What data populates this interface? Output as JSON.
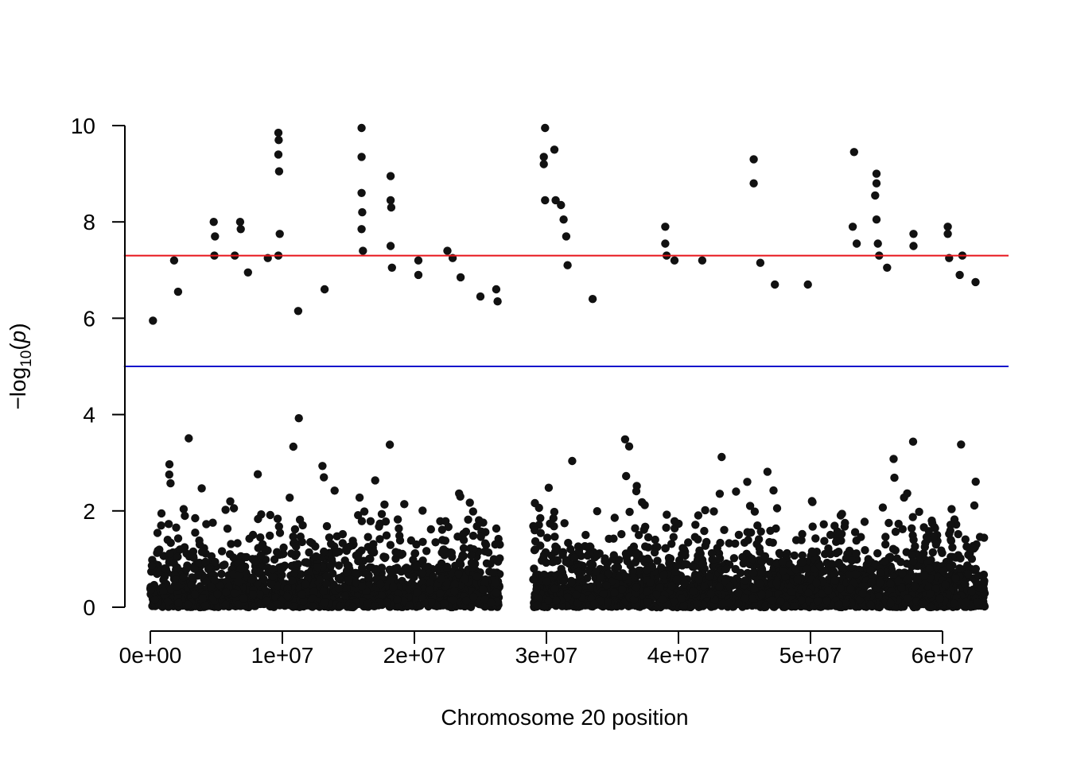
{
  "chart_data": {
    "type": "scatter",
    "title": "",
    "xlabel": "Chromosome 20 position",
    "ylabel": "-log10(p)",
    "xlim": [
      -2000000,
      65000000
    ],
    "ylim": [
      0,
      10
    ],
    "x_ticks": [
      0,
      10000000,
      20000000,
      30000000,
      40000000,
      50000000,
      60000000
    ],
    "x_tick_labels": [
      "0e+00",
      "1e+07",
      "2e+07",
      "3e+07",
      "4e+07",
      "5e+07",
      "6e+07"
    ],
    "y_ticks": [
      0,
      2,
      4,
      6,
      8,
      10
    ],
    "y_tick_labels": [
      "0",
      "2",
      "4",
      "6",
      "8",
      "10"
    ],
    "point_color": "#111111",
    "grid": false,
    "thresholds": [
      {
        "value": 7.3,
        "color": "#e8151b"
      },
      {
        "value": 5.0,
        "color": "#1414cc"
      }
    ],
    "data_gap": [
      26500000,
      29000000
    ],
    "peaks": [
      {
        "x": 200000,
        "y": 5.95
      },
      {
        "x": 1800000,
        "y": 7.2
      },
      {
        "x": 2100000,
        "y": 6.55
      },
      {
        "x": 4800000,
        "y": 8.0
      },
      {
        "x": 4900000,
        "y": 7.7
      },
      {
        "x": 4850000,
        "y": 7.3
      },
      {
        "x": 6400000,
        "y": 7.3
      },
      {
        "x": 6800000,
        "y": 8.0
      },
      {
        "x": 6850000,
        "y": 7.85
      },
      {
        "x": 7400000,
        "y": 6.95
      },
      {
        "x": 8900000,
        "y": 7.25
      },
      {
        "x": 9700000,
        "y": 9.85
      },
      {
        "x": 9720000,
        "y": 9.7
      },
      {
        "x": 9700000,
        "y": 9.4
      },
      {
        "x": 9750000,
        "y": 9.05
      },
      {
        "x": 9800000,
        "y": 7.75
      },
      {
        "x": 9700000,
        "y": 7.3
      },
      {
        "x": 11200000,
        "y": 6.15
      },
      {
        "x": 13200000,
        "y": 6.6
      },
      {
        "x": 16000000,
        "y": 9.95
      },
      {
        "x": 16000000,
        "y": 9.35
      },
      {
        "x": 16000000,
        "y": 8.6
      },
      {
        "x": 16050000,
        "y": 8.2
      },
      {
        "x": 16000000,
        "y": 7.85
      },
      {
        "x": 16100000,
        "y": 7.4
      },
      {
        "x": 18200000,
        "y": 8.95
      },
      {
        "x": 18200000,
        "y": 8.45
      },
      {
        "x": 18250000,
        "y": 8.3
      },
      {
        "x": 18200000,
        "y": 7.5
      },
      {
        "x": 18300000,
        "y": 7.05
      },
      {
        "x": 20300000,
        "y": 7.2
      },
      {
        "x": 20300000,
        "y": 6.9
      },
      {
        "x": 22500000,
        "y": 7.4
      },
      {
        "x": 22900000,
        "y": 7.25
      },
      {
        "x": 23500000,
        "y": 6.85
      },
      {
        "x": 25000000,
        "y": 6.45
      },
      {
        "x": 26200000,
        "y": 6.6
      },
      {
        "x": 26300000,
        "y": 6.35
      },
      {
        "x": 29900000,
        "y": 9.95
      },
      {
        "x": 29800000,
        "y": 9.35
      },
      {
        "x": 29800000,
        "y": 9.2
      },
      {
        "x": 30600000,
        "y": 9.5
      },
      {
        "x": 29900000,
        "y": 8.45
      },
      {
        "x": 30700000,
        "y": 8.45
      },
      {
        "x": 31100000,
        "y": 8.35
      },
      {
        "x": 31300000,
        "y": 8.05
      },
      {
        "x": 31500000,
        "y": 7.7
      },
      {
        "x": 31600000,
        "y": 7.1
      },
      {
        "x": 33500000,
        "y": 6.4
      },
      {
        "x": 39000000,
        "y": 7.9
      },
      {
        "x": 39000000,
        "y": 7.55
      },
      {
        "x": 39100000,
        "y": 7.3
      },
      {
        "x": 39700000,
        "y": 7.2
      },
      {
        "x": 41800000,
        "y": 7.2
      },
      {
        "x": 45700000,
        "y": 9.3
      },
      {
        "x": 45700000,
        "y": 8.8
      },
      {
        "x": 46200000,
        "y": 7.15
      },
      {
        "x": 47300000,
        "y": 6.7
      },
      {
        "x": 49800000,
        "y": 6.7
      },
      {
        "x": 53300000,
        "y": 9.45
      },
      {
        "x": 53200000,
        "y": 7.9
      },
      {
        "x": 53500000,
        "y": 7.55
      },
      {
        "x": 55000000,
        "y": 9.0
      },
      {
        "x": 55000000,
        "y": 8.8
      },
      {
        "x": 54900000,
        "y": 8.55
      },
      {
        "x": 55000000,
        "y": 8.05
      },
      {
        "x": 55100000,
        "y": 7.55
      },
      {
        "x": 55200000,
        "y": 7.3
      },
      {
        "x": 55800000,
        "y": 7.05
      },
      {
        "x": 57800000,
        "y": 7.75
      },
      {
        "x": 57800000,
        "y": 7.5
      },
      {
        "x": 60400000,
        "y": 7.9
      },
      {
        "x": 60400000,
        "y": 7.75
      },
      {
        "x": 60500000,
        "y": 7.25
      },
      {
        "x": 61500000,
        "y": 7.3
      },
      {
        "x": 61300000,
        "y": 6.9
      },
      {
        "x": 62500000,
        "y": 6.75
      }
    ]
  }
}
